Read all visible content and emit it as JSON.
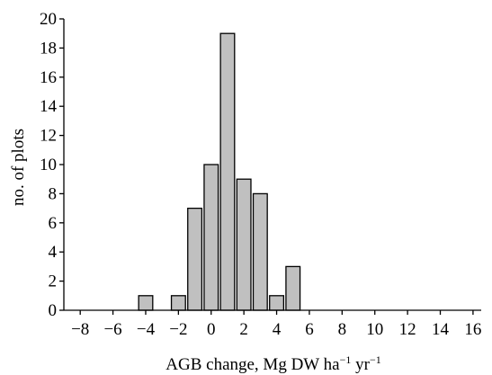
{
  "chart_data": {
    "type": "bar",
    "x": [
      -8,
      -7,
      -6,
      -5,
      -4,
      -3,
      -2,
      -1,
      0,
      1,
      2,
      3,
      4,
      5,
      6,
      7,
      8,
      9,
      10,
      11,
      12,
      13,
      14,
      15,
      16
    ],
    "values": [
      0,
      0,
      0,
      0,
      1,
      0,
      1,
      7,
      10,
      19,
      9,
      8,
      1,
      3,
      0,
      0,
      0,
      0,
      0,
      0,
      0,
      0,
      0,
      0,
      0
    ],
    "xticks": [
      "−8",
      "−6",
      "−4",
      "−2",
      "0",
      "2",
      "4",
      "6",
      "8",
      "10",
      "12",
      "14",
      "16"
    ],
    "yticks": [
      "0",
      "2",
      "4",
      "6",
      "8",
      "10",
      "12",
      "14",
      "16",
      "18",
      "20"
    ],
    "xlabel": {
      "text": "AGB change, Mg DW ha",
      "sup1": "−1",
      "mid": " yr",
      "sup2": "−1"
    },
    "ylabel": "no. of plots",
    "xlim": [
      -9,
      16.5
    ],
    "ylim": [
      0,
      20
    ],
    "bar_color": "#c0c0c0",
    "edge_color": "#000000",
    "grid": false
  }
}
